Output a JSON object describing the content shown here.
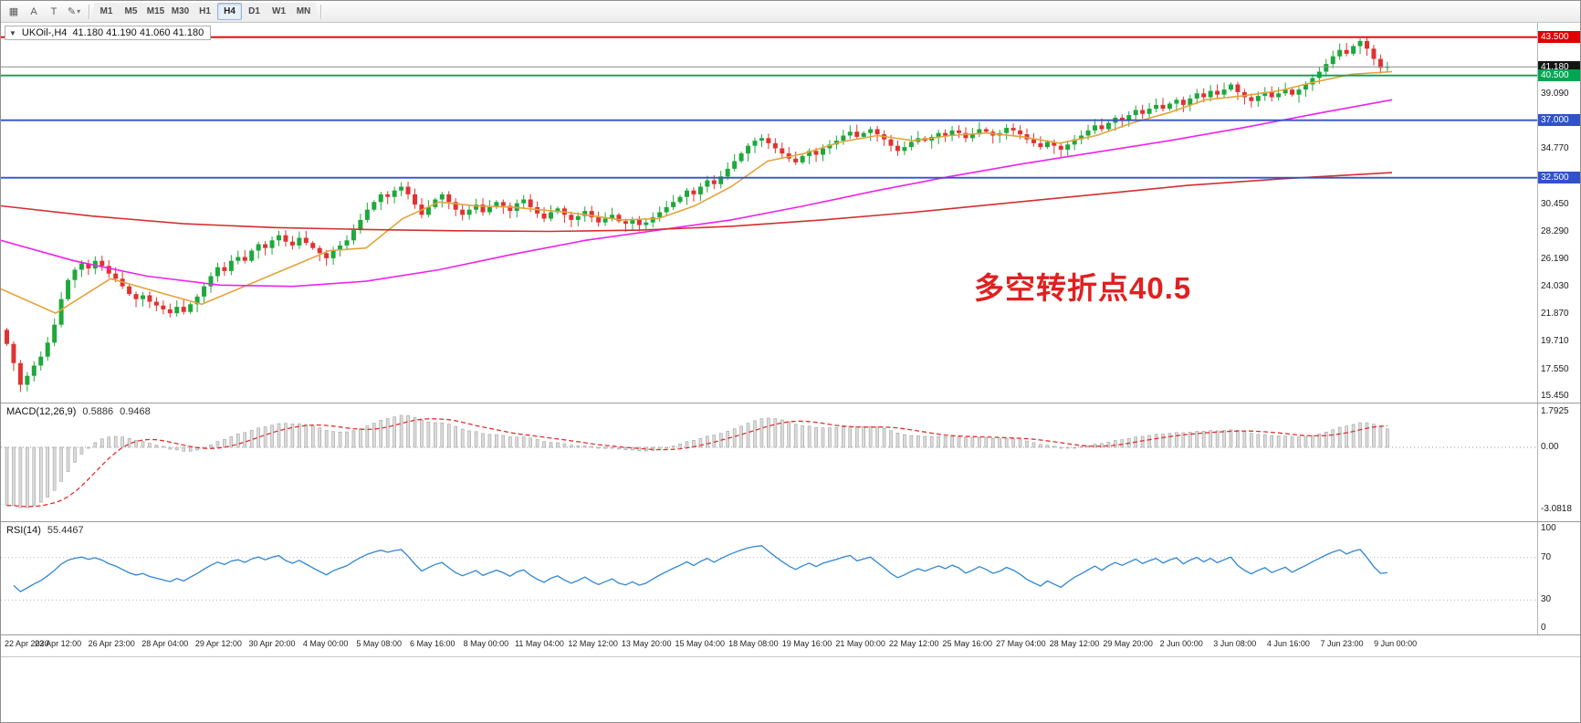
{
  "window": {
    "title": "UKOil-,H4"
  },
  "toolbar": {
    "icons": [
      {
        "name": "chart-window-icon",
        "glyph": "▦"
      },
      {
        "name": "cursor-tool",
        "glyph": "A"
      },
      {
        "name": "text-tool",
        "glyph": "T"
      },
      {
        "name": "draw-tool",
        "glyph": "✎",
        "caret": "▾"
      }
    ],
    "timeframes": [
      "M1",
      "M5",
      "M15",
      "M30",
      "H1",
      "H4",
      "D1",
      "W1",
      "MN"
    ],
    "selected_timeframe": "H4"
  },
  "chart": {
    "expander": "▼",
    "symbol_info": "UKOil-,H4",
    "ohlc_text": "41.180 41.190 41.060 41.180",
    "annotation": "多空转折点40.5",
    "bid_line_price": 41.18,
    "price_axis": [
      {
        "text": "43.500",
        "value": 43.5,
        "style": "red"
      },
      {
        "text": "41.180",
        "value": 41.18,
        "style": "dark"
      },
      {
        "text": "40.500",
        "value": 40.5,
        "style": "green"
      },
      {
        "text": "39.090",
        "value": 39.09,
        "style": "plain"
      },
      {
        "text": "37.000",
        "value": 37.0,
        "style": "blue"
      },
      {
        "text": "34.770",
        "value": 34.77,
        "style": "plain"
      },
      {
        "text": "32.500",
        "value": 32.5,
        "style": "blue"
      },
      {
        "text": "30.450",
        "value": 30.45,
        "style": "plain"
      },
      {
        "text": "28.290",
        "value": 28.29,
        "style": "plain"
      },
      {
        "text": "26.190",
        "value": 26.19,
        "style": "plain"
      },
      {
        "text": "24.030",
        "value": 24.03,
        "style": "plain"
      },
      {
        "text": "21.870",
        "value": 21.87,
        "style": "plain"
      },
      {
        "text": "19.710",
        "value": 19.71,
        "style": "plain"
      },
      {
        "text": "17.550",
        "value": 17.55,
        "style": "plain"
      },
      {
        "text": "15.450",
        "value": 15.45,
        "style": "plain"
      }
    ],
    "levels": [
      {
        "price": 43.5,
        "color": "#e10000"
      },
      {
        "price": 40.5,
        "color": "#00a651"
      },
      {
        "price": 37.0,
        "color": "#3152cc"
      },
      {
        "price": 32.5,
        "color": "#3152cc"
      }
    ]
  },
  "chart_data": {
    "type": "candlestick",
    "symbol": "UKOil-",
    "timeframe": "H4",
    "open_first": 20.6,
    "closes": [
      19.5,
      18.0,
      16.3,
      17.0,
      17.8,
      18.5,
      19.6,
      21.0,
      23.0,
      24.5,
      25.3,
      25.8,
      25.4,
      26.0,
      25.6,
      25.0,
      24.6,
      24.0,
      23.4,
      23.0,
      23.3,
      22.8,
      22.5,
      22.2,
      21.9,
      22.4,
      22.0,
      22.6,
      23.2,
      24.0,
      24.8,
      25.5,
      25.2,
      26.0,
      26.3,
      26.0,
      26.8,
      27.3,
      27.0,
      27.6,
      28.0,
      27.5,
      27.2,
      27.8,
      27.4,
      27.0,
      26.6,
      26.2,
      26.8,
      27.2,
      27.6,
      28.4,
      29.2,
      30.0,
      30.6,
      31.2,
      31.0,
      31.5,
      31.8,
      31.2,
      30.4,
      29.6,
      30.2,
      30.8,
      31.2,
      30.6,
      30.0,
      29.6,
      30.0,
      30.4,
      29.8,
      30.2,
      30.6,
      30.3,
      29.9,
      30.5,
      30.8,
      30.2,
      29.7,
      29.3,
      29.8,
      30.1,
      29.6,
      29.2,
      29.5,
      29.9,
      29.4,
      29.0,
      29.3,
      29.6,
      29.1,
      28.9,
      29.2,
      28.8,
      29.0,
      29.4,
      29.8,
      30.2,
      30.6,
      31.0,
      31.5,
      31.2,
      31.8,
      32.3,
      32.0,
      32.6,
      33.2,
      33.8,
      34.4,
      35.0,
      35.4,
      35.6,
      35.2,
      34.8,
      34.4,
      34.0,
      33.7,
      34.2,
      34.6,
      34.3,
      34.8,
      35.1,
      35.4,
      35.8,
      36.1,
      35.7,
      36.0,
      36.3,
      35.9,
      35.5,
      35.0,
      34.6,
      34.9,
      35.3,
      35.6,
      35.4,
      35.7,
      36.0,
      35.8,
      36.2,
      36.0,
      35.6,
      35.9,
      36.3,
      36.1,
      35.8,
      36.0,
      36.4,
      36.2,
      35.9,
      35.5,
      35.2,
      34.9,
      35.3,
      35.0,
      34.7,
      35.1,
      35.5,
      35.8,
      36.2,
      36.6,
      36.3,
      36.8,
      37.2,
      37.0,
      37.4,
      37.8,
      37.5,
      37.9,
      38.2,
      37.9,
      38.3,
      38.6,
      38.2,
      38.7,
      39.1,
      38.8,
      39.3,
      39.0,
      39.4,
      39.8,
      39.2,
      38.8,
      38.5,
      38.9,
      39.2,
      38.8,
      39.1,
      39.4,
      39.0,
      39.4,
      39.8,
      40.3,
      40.8,
      41.4,
      42.0,
      42.5,
      42.2,
      42.8,
      43.2,
      42.6,
      41.8,
      41.1,
      41.18
    ],
    "ma_lines": [
      {
        "name": "ma-fast-orange",
        "color": "#e4a33b",
        "points": [
          [
            0,
            23.8
          ],
          [
            60,
            21.9
          ],
          [
            120,
            24.6
          ],
          [
            180,
            23.4
          ],
          [
            220,
            22.6
          ],
          [
            260,
            23.8
          ],
          [
            310,
            25.3
          ],
          [
            360,
            26.8
          ],
          [
            400,
            27.0
          ],
          [
            440,
            29.3
          ],
          [
            480,
            30.6
          ],
          [
            520,
            30.3
          ],
          [
            560,
            30.2
          ],
          [
            620,
            29.8
          ],
          [
            680,
            29.2
          ],
          [
            720,
            29.3
          ],
          [
            760,
            30.3
          ],
          [
            800,
            31.8
          ],
          [
            840,
            33.8
          ],
          [
            880,
            34.4
          ],
          [
            920,
            35.3
          ],
          [
            960,
            35.8
          ],
          [
            1000,
            35.4
          ],
          [
            1040,
            35.8
          ],
          [
            1080,
            36.0
          ],
          [
            1120,
            35.7
          ],
          [
            1160,
            35.2
          ],
          [
            1200,
            35.8
          ],
          [
            1240,
            36.8
          ],
          [
            1280,
            37.6
          ],
          [
            1320,
            38.6
          ],
          [
            1360,
            38.9
          ],
          [
            1400,
            39.3
          ],
          [
            1440,
            40.0
          ],
          [
            1480,
            40.6
          ],
          [
            1524,
            40.8
          ]
        ]
      },
      {
        "name": "ma-mid-magenta",
        "color": "#ee22ee",
        "points": [
          [
            0,
            27.6
          ],
          [
            80,
            26.0
          ],
          [
            160,
            24.8
          ],
          [
            240,
            24.1
          ],
          [
            320,
            24.0
          ],
          [
            400,
            24.4
          ],
          [
            480,
            25.3
          ],
          [
            560,
            26.5
          ],
          [
            640,
            27.6
          ],
          [
            720,
            28.4
          ],
          [
            800,
            29.2
          ],
          [
            880,
            30.3
          ],
          [
            960,
            31.5
          ],
          [
            1040,
            32.6
          ],
          [
            1120,
            33.6
          ],
          [
            1200,
            34.5
          ],
          [
            1280,
            35.4
          ],
          [
            1360,
            36.4
          ],
          [
            1440,
            37.5
          ],
          [
            1524,
            38.6
          ]
        ]
      },
      {
        "name": "ma-slow-red",
        "color": "#d32f2f",
        "points": [
          [
            0,
            30.3
          ],
          [
            100,
            29.5
          ],
          [
            200,
            28.9
          ],
          [
            300,
            28.6
          ],
          [
            400,
            28.45
          ],
          [
            500,
            28.35
          ],
          [
            600,
            28.3
          ],
          [
            700,
            28.4
          ],
          [
            800,
            28.7
          ],
          [
            900,
            29.2
          ],
          [
            1000,
            29.8
          ],
          [
            1100,
            30.5
          ],
          [
            1200,
            31.2
          ],
          [
            1300,
            31.9
          ],
          [
            1400,
            32.4
          ],
          [
            1524,
            32.9
          ]
        ]
      }
    ],
    "macd": {
      "label": "MACD(12,26,9)",
      "macd_value": "0.5886",
      "signal_value": "0.9468",
      "axis": [
        {
          "text": "1.7925",
          "value": 1.7925
        },
        {
          "text": "0.00",
          "value": 0
        },
        {
          "text": "-3.0818",
          "value": -3.0818
        }
      ]
    },
    "rsi": {
      "label": "RSI(14)",
      "value": "55.4467",
      "axis": [
        {
          "text": "100",
          "value": 100
        },
        {
          "text": "70",
          "value": 70
        },
        {
          "text": "30",
          "value": 30
        },
        {
          "text": "0",
          "value": 0
        }
      ],
      "levels": [
        70,
        30
      ]
    },
    "time_labels": [
      "22 Apr 2020",
      "23 Apr 12:00",
      "26 Apr 23:00",
      "28 Apr 04:00",
      "29 Apr 12:00",
      "30 Apr 20:00",
      "4 May 00:00",
      "5 May 08:00",
      "6 May 16:00",
      "8 May 00:00",
      "11 May 04:00",
      "12 May 12:00",
      "13 May 20:00",
      "15 May 04:00",
      "18 May 08:00",
      "19 May 16:00",
      "21 May 00:00",
      "22 May 12:00",
      "25 May 16:00",
      "27 May 04:00",
      "28 May 12:00",
      "29 May 20:00",
      "2 Jun 00:00",
      "3 Jun 08:00",
      "4 Jun 16:00",
      "7 Jun 23:00",
      "9 Jun 00:00"
    ]
  }
}
